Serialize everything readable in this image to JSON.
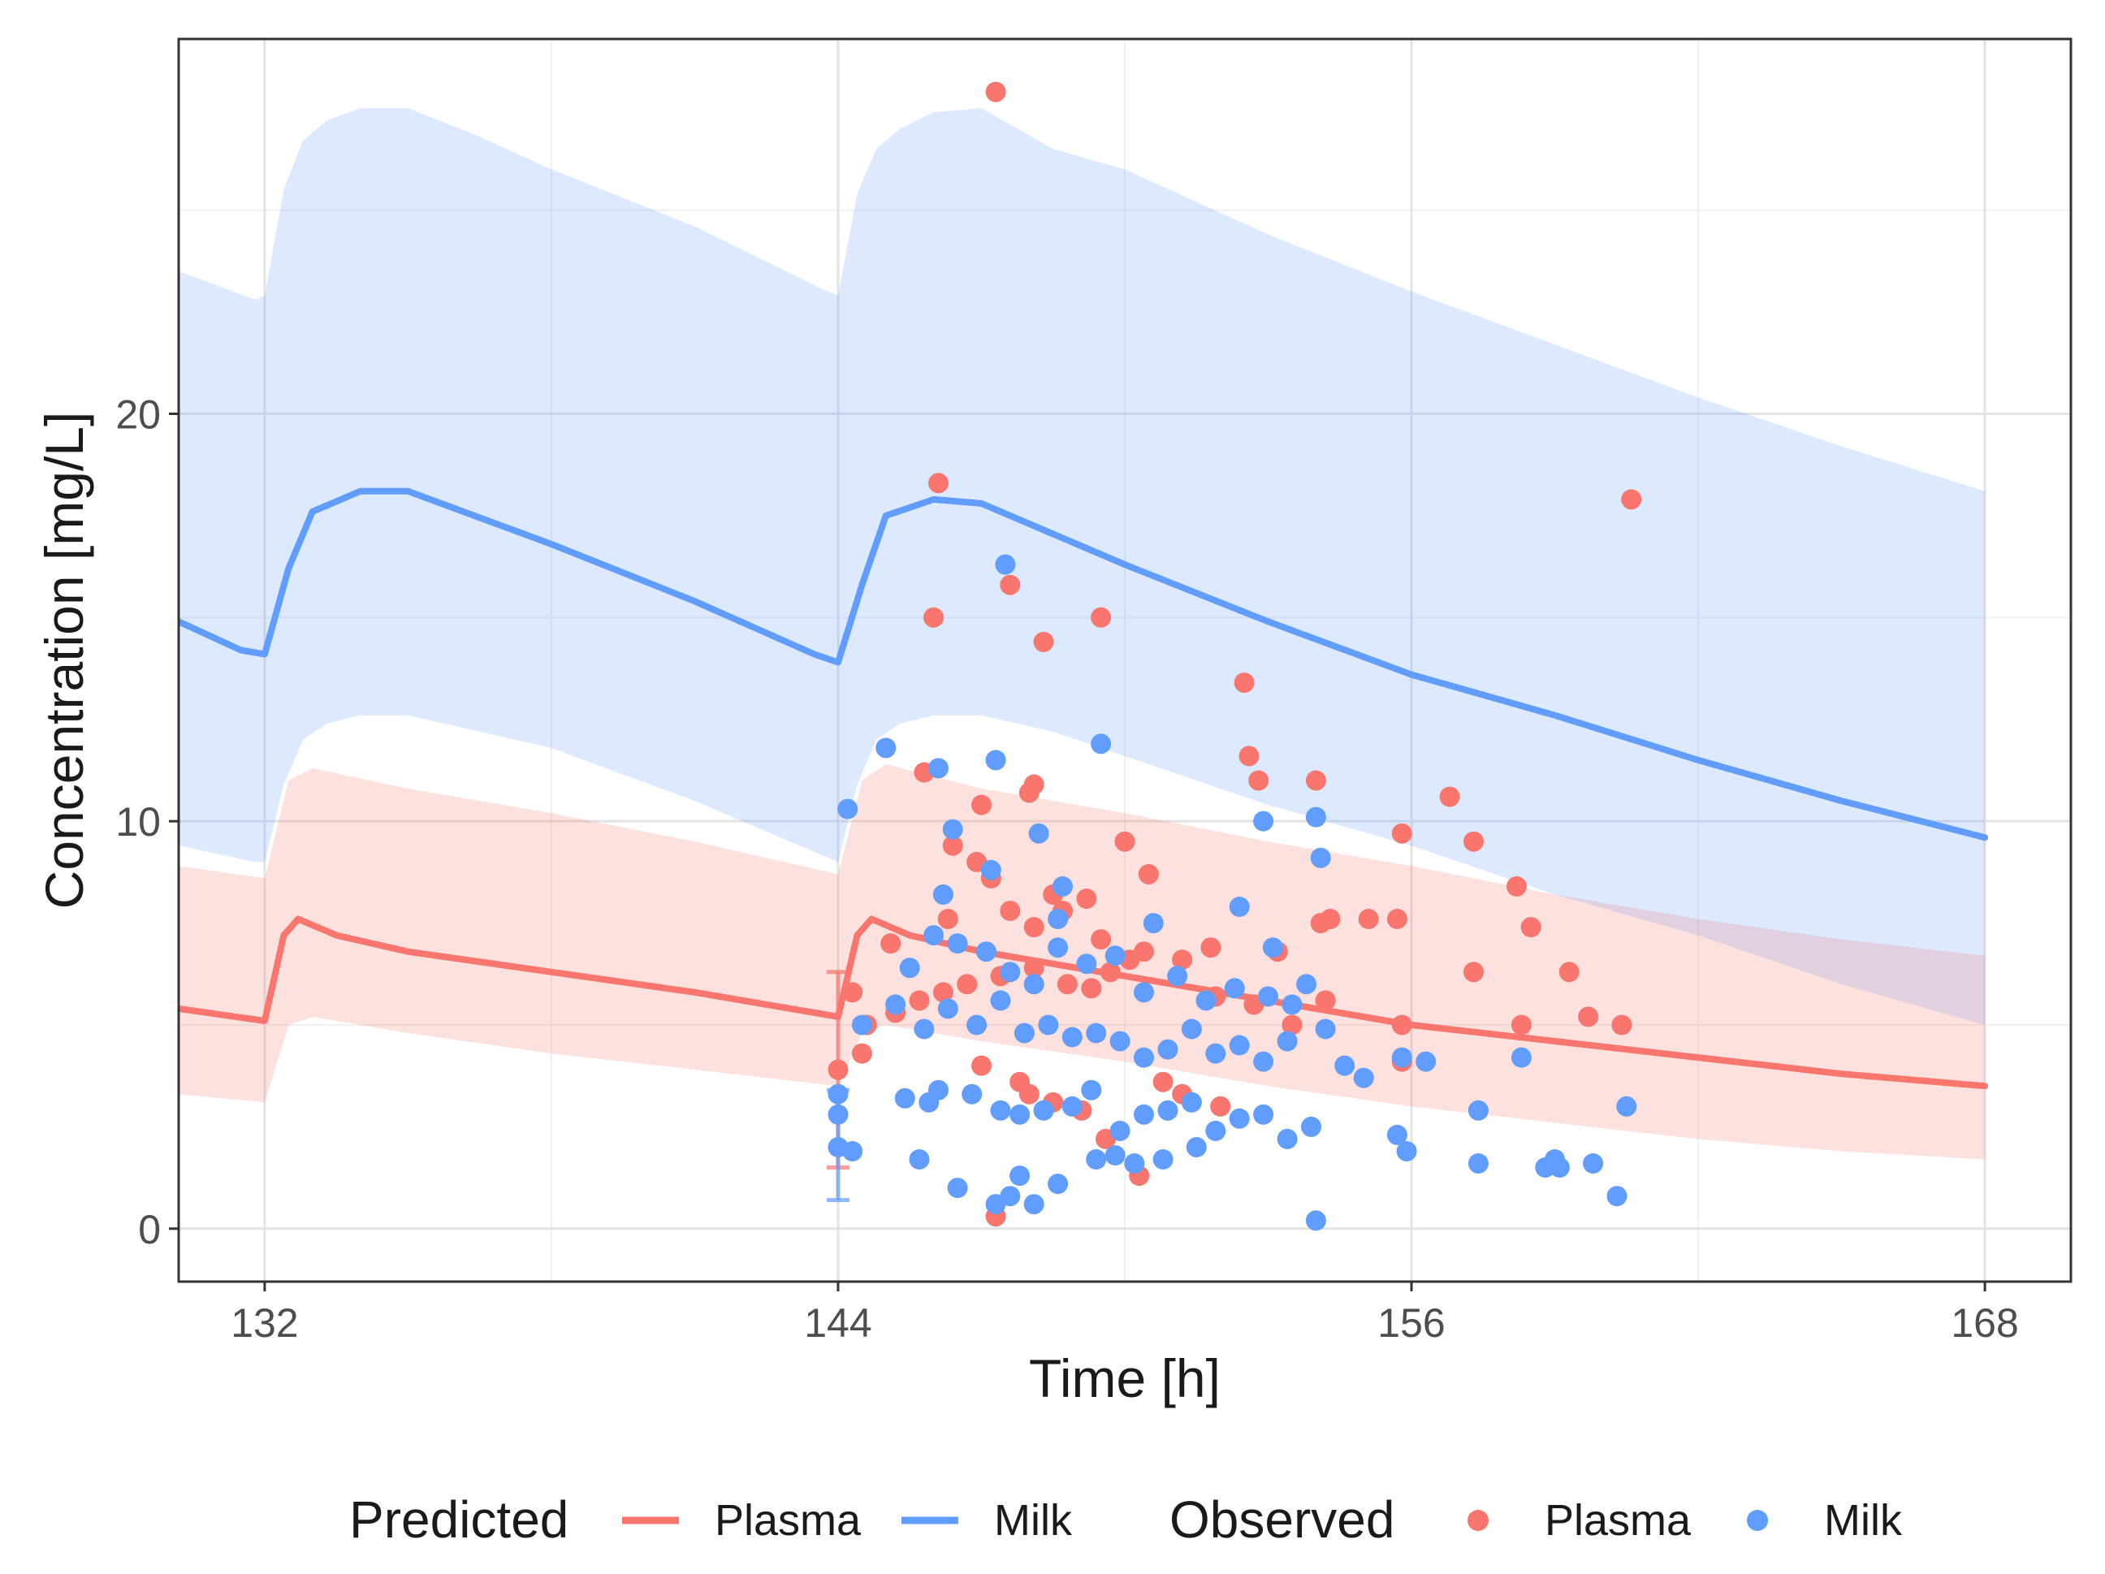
{
  "chart_data": {
    "type": "line",
    "title": "",
    "xlabel": "Time [h]",
    "ylabel": "Concentration [mg/L]",
    "xlim": [
      130.2,
      169.8
    ],
    "ylim": [
      -1.3,
      29.2
    ],
    "x_ticks": [
      132,
      144,
      156,
      168
    ],
    "x_tick_labels": [
      "132",
      "144",
      "156",
      "168"
    ],
    "y_ticks": [
      0,
      10,
      20
    ],
    "y_tick_labels": [
      "0",
      "10",
      "20"
    ],
    "grid": true,
    "colors": {
      "plasma": "#F8766D",
      "milk": "#619CFF"
    },
    "legend": {
      "position": "bottom",
      "predicted_title": "Predicted",
      "observed_title": "Observed",
      "predicted_items": [
        "Plasma",
        "Milk"
      ],
      "observed_items": [
        "Plasma",
        "Milk"
      ]
    },
    "series": [
      {
        "name": "Plasma",
        "kind": "predicted_median",
        "x": [
          130.2,
          132.0,
          132.4,
          132.7,
          133.5,
          135.0,
          138.0,
          141.0,
          144.0,
          144.4,
          144.7,
          145.5,
          147.0,
          150.0,
          153.0,
          156.0,
          159.0,
          162.0,
          165.0,
          168.0
        ],
        "y": [
          5.4,
          5.1,
          7.2,
          7.6,
          7.2,
          6.8,
          6.3,
          5.8,
          5.2,
          7.2,
          7.6,
          7.2,
          6.8,
          6.2,
          5.6,
          5.0,
          4.6,
          4.2,
          3.8,
          3.5
        ]
      },
      {
        "name": "Milk",
        "kind": "predicted_median",
        "x": [
          130.2,
          131.5,
          132.0,
          132.5,
          133.0,
          134.0,
          135.0,
          138.0,
          141.0,
          143.5,
          144.0,
          144.5,
          145.0,
          146.0,
          147.0,
          150.0,
          153.0,
          156.0,
          159.0,
          162.0,
          165.0,
          168.0
        ],
        "y": [
          14.9,
          14.2,
          14.1,
          16.2,
          17.6,
          18.1,
          18.1,
          16.8,
          15.4,
          14.1,
          13.9,
          15.8,
          17.5,
          17.9,
          17.8,
          16.3,
          14.9,
          13.6,
          12.6,
          11.5,
          10.5,
          9.6
        ]
      },
      {
        "name": "Plasma",
        "kind": "predicted_interval",
        "x": [
          130.2,
          132.0,
          132.5,
          133.0,
          135.0,
          138.0,
          141.0,
          144.0,
          144.5,
          145.0,
          147.0,
          150.0,
          153.0,
          156.0,
          159.0,
          162.0,
          165.0,
          168.0
        ],
        "upper": [
          8.9,
          8.6,
          11.0,
          11.3,
          10.8,
          10.2,
          9.5,
          8.7,
          11.0,
          11.4,
          10.8,
          10.2,
          9.5,
          8.9,
          8.2,
          7.6,
          7.1,
          6.7
        ],
        "lower": [
          3.3,
          3.1,
          5.0,
          5.2,
          4.8,
          4.3,
          3.9,
          3.5,
          4.8,
          5.0,
          4.6,
          4.1,
          3.5,
          3.0,
          2.6,
          2.2,
          1.9,
          1.7
        ]
      },
      {
        "name": "Milk",
        "kind": "predicted_interval",
        "x": [
          130.2,
          131.8,
          132.0,
          132.4,
          132.8,
          133.3,
          134.0,
          135.0,
          136.5,
          138.0,
          141.0,
          143.6,
          144.0,
          144.4,
          144.8,
          145.3,
          146.0,
          147.0,
          148.5,
          150.0,
          153.0,
          156.0,
          159.0,
          162.0,
          165.0,
          168.0
        ],
        "upper": [
          23.5,
          22.8,
          22.9,
          25.5,
          26.7,
          27.2,
          27.5,
          27.5,
          26.8,
          26.0,
          24.6,
          23.1,
          22.9,
          25.4,
          26.5,
          27.0,
          27.4,
          27.5,
          26.5,
          26.0,
          24.4,
          23.0,
          21.7,
          20.4,
          19.2,
          18.1
        ],
        "lower": [
          9.4,
          9.0,
          9.0,
          10.9,
          12.0,
          12.4,
          12.6,
          12.6,
          12.2,
          11.8,
          10.5,
          9.2,
          9.0,
          10.9,
          12.0,
          12.4,
          12.6,
          12.6,
          12.2,
          11.6,
          10.4,
          9.4,
          8.2,
          7.2,
          6.0,
          5.0
        ]
      },
      {
        "name": "Plasma",
        "kind": "observed",
        "points": [
          [
            147.3,
            27.9
          ],
          [
            146.1,
            18.3
          ],
          [
            160.6,
            17.9
          ],
          [
            147.6,
            15.8
          ],
          [
            146.0,
            15.0
          ],
          [
            149.5,
            15.0
          ],
          [
            148.3,
            14.4
          ],
          [
            152.5,
            13.4
          ],
          [
            152.6,
            11.6
          ],
          [
            152.8,
            11.0
          ],
          [
            154.0,
            11.0
          ],
          [
            145.8,
            11.2
          ],
          [
            147.0,
            10.4
          ],
          [
            148.0,
            10.7
          ],
          [
            148.1,
            10.9
          ],
          [
            150.0,
            9.5
          ],
          [
            155.8,
            9.7
          ],
          [
            156.8,
            10.6
          ],
          [
            157.3,
            9.5
          ],
          [
            146.4,
            9.4
          ],
          [
            146.9,
            9.0
          ],
          [
            147.2,
            8.6
          ],
          [
            148.5,
            8.2
          ],
          [
            149.2,
            8.1
          ],
          [
            150.5,
            8.7
          ],
          [
            158.2,
            8.4
          ],
          [
            145.1,
            7.0
          ],
          [
            146.3,
            7.6
          ],
          [
            147.6,
            7.8
          ],
          [
            148.1,
            7.4
          ],
          [
            148.7,
            7.8
          ],
          [
            149.5,
            7.1
          ],
          [
            150.1,
            6.6
          ],
          [
            151.8,
            6.9
          ],
          [
            153.2,
            6.8
          ],
          [
            154.1,
            7.5
          ],
          [
            154.3,
            7.6
          ],
          [
            155.1,
            7.6
          ],
          [
            155.7,
            7.6
          ],
          [
            144.3,
            5.8
          ],
          [
            144.6,
            5.0
          ],
          [
            145.2,
            5.3
          ],
          [
            145.7,
            5.6
          ],
          [
            146.2,
            5.8
          ],
          [
            146.7,
            6.0
          ],
          [
            147.4,
            6.2
          ],
          [
            148.1,
            6.4
          ],
          [
            148.8,
            6.0
          ],
          [
            149.3,
            5.9
          ],
          [
            149.7,
            6.3
          ],
          [
            150.4,
            6.8
          ],
          [
            151.2,
            6.6
          ],
          [
            151.9,
            5.7
          ],
          [
            152.7,
            5.5
          ],
          [
            153.5,
            5.0
          ],
          [
            154.2,
            5.6
          ],
          [
            155.8,
            5.0
          ],
          [
            157.3,
            6.3
          ],
          [
            158.5,
            7.4
          ],
          [
            159.3,
            6.3
          ],
          [
            158.3,
            5.0
          ],
          [
            159.7,
            5.2
          ],
          [
            160.4,
            5.0
          ],
          [
            144.0,
            3.9
          ],
          [
            144.5,
            4.3
          ],
          [
            147.0,
            4.0
          ],
          [
            147.8,
            3.6
          ],
          [
            148.5,
            3.1
          ],
          [
            149.1,
            2.9
          ],
          [
            150.3,
            1.3
          ],
          [
            151.2,
            3.3
          ],
          [
            152.0,
            3.0
          ],
          [
            147.3,
            0.3
          ],
          [
            149.6,
            2.2
          ],
          [
            148.0,
            3.3
          ],
          [
            150.8,
            3.6
          ],
          [
            155.8,
            4.1
          ]
        ],
        "error_bar": {
          "x": 144.0,
          "low": 1.5,
          "high": 6.3
        }
      },
      {
        "name": "Milk",
        "kind": "observed",
        "points": [
          [
            147.5,
            16.3
          ],
          [
            145.0,
            11.8
          ],
          [
            147.3,
            11.5
          ],
          [
            149.5,
            11.9
          ],
          [
            146.1,
            11.3
          ],
          [
            144.2,
            10.3
          ],
          [
            146.4,
            9.8
          ],
          [
            152.9,
            10.0
          ],
          [
            154.0,
            10.1
          ],
          [
            154.1,
            9.1
          ],
          [
            148.2,
            9.7
          ],
          [
            146.2,
            8.2
          ],
          [
            147.2,
            8.8
          ],
          [
            148.6,
            7.6
          ],
          [
            148.7,
            8.4
          ],
          [
            150.6,
            7.5
          ],
          [
            152.4,
            7.9
          ],
          [
            153.1,
            6.9
          ],
          [
            145.5,
            6.4
          ],
          [
            146.0,
            7.2
          ],
          [
            146.5,
            7.0
          ],
          [
            147.1,
            6.8
          ],
          [
            147.6,
            6.3
          ],
          [
            148.1,
            6.0
          ],
          [
            148.6,
            6.9
          ],
          [
            149.2,
            6.5
          ],
          [
            149.8,
            6.7
          ],
          [
            150.4,
            5.8
          ],
          [
            151.1,
            6.2
          ],
          [
            151.7,
            5.6
          ],
          [
            152.3,
            5.9
          ],
          [
            153.0,
            5.7
          ],
          [
            153.5,
            5.5
          ],
          [
            153.8,
            6.0
          ],
          [
            144.5,
            5.0
          ],
          [
            145.2,
            5.5
          ],
          [
            145.8,
            4.9
          ],
          [
            146.3,
            5.4
          ],
          [
            146.9,
            5.0
          ],
          [
            147.4,
            5.6
          ],
          [
            147.9,
            4.8
          ],
          [
            148.4,
            5.0
          ],
          [
            148.9,
            4.7
          ],
          [
            149.4,
            4.8
          ],
          [
            149.9,
            4.6
          ],
          [
            150.4,
            4.2
          ],
          [
            150.9,
            4.4
          ],
          [
            151.4,
            4.9
          ],
          [
            151.9,
            4.3
          ],
          [
            152.4,
            4.5
          ],
          [
            152.9,
            4.1
          ],
          [
            153.4,
            4.6
          ],
          [
            154.2,
            4.9
          ],
          [
            154.6,
            4.0
          ],
          [
            155.0,
            3.7
          ],
          [
            155.8,
            4.2
          ],
          [
            156.3,
            4.1
          ],
          [
            158.3,
            4.2
          ],
          [
            144.0,
            3.3
          ],
          [
            144.0,
            2.8
          ],
          [
            144.0,
            2.0
          ],
          [
            144.3,
            1.9
          ],
          [
            145.4,
            3.2
          ],
          [
            145.9,
            3.1
          ],
          [
            146.1,
            3.4
          ],
          [
            146.8,
            3.3
          ],
          [
            147.4,
            2.9
          ],
          [
            147.8,
            2.8
          ],
          [
            148.3,
            2.9
          ],
          [
            148.9,
            3.0
          ],
          [
            149.3,
            3.4
          ],
          [
            149.9,
            2.4
          ],
          [
            150.4,
            2.8
          ],
          [
            150.9,
            2.9
          ],
          [
            151.4,
            3.1
          ],
          [
            151.9,
            2.4
          ],
          [
            152.4,
            2.7
          ],
          [
            152.9,
            2.8
          ],
          [
            153.4,
            2.2
          ],
          [
            153.9,
            2.5
          ],
          [
            155.7,
            2.3
          ],
          [
            155.9,
            1.9
          ],
          [
            157.4,
            2.9
          ],
          [
            157.4,
            1.6
          ],
          [
            158.8,
            1.5
          ],
          [
            159.0,
            1.7
          ],
          [
            159.1,
            1.5
          ],
          [
            159.8,
            1.6
          ],
          [
            160.5,
            3.0
          ],
          [
            160.3,
            0.8
          ],
          [
            146.5,
            1.0
          ],
          [
            147.3,
            0.6
          ],
          [
            147.6,
            0.8
          ],
          [
            147.8,
            1.3
          ],
          [
            148.1,
            0.6
          ],
          [
            148.6,
            1.1
          ],
          [
            149.4,
            1.7
          ],
          [
            149.8,
            1.8
          ],
          [
            150.2,
            1.6
          ],
          [
            150.8,
            1.7
          ],
          [
            151.5,
            2.0
          ],
          [
            154.0,
            0.2
          ],
          [
            145.7,
            1.7
          ]
        ],
        "error_bar": {
          "x": 144.0,
          "low": 0.7,
          "high": 3.4
        }
      }
    ]
  }
}
